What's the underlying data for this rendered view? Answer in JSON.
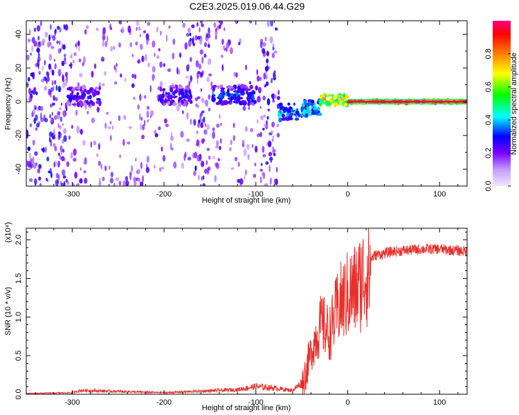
{
  "title": "C2E3.2025.019.06.44.G29",
  "chart_data": [
    {
      "type": "heatmap",
      "xlabel": "Height of straight line (km)",
      "ylabel": "Frequency (Hz)",
      "xlim": [
        -350,
        130
      ],
      "ylim": [
        -50,
        48
      ],
      "xticks": [
        -300,
        -200,
        -100,
        0,
        100
      ],
      "xtick_labels": [
        "-300",
        "-200",
        "-100",
        "0",
        "100"
      ],
      "yticks": [
        -40,
        -20,
        0,
        20,
        40
      ],
      "ytick_labels": [
        "-40",
        "-20",
        "0",
        "20",
        "40"
      ],
      "colorbar": {
        "label": "Normalized spectral amplitude",
        "range": [
          0,
          1
        ],
        "ticks": [
          0.0,
          0.2,
          0.4,
          0.6,
          0.8
        ],
        "tick_labels": [
          "0.0",
          "0.2",
          "0.4",
          "0.6",
          "0.8"
        ],
        "colormap": [
          "#f0e6ff",
          "#7a00ff",
          "#0000ff",
          "#00ffff",
          "#00ff00",
          "#ffff00",
          "#ff8000",
          "#ff0000",
          "#ff0080"
        ]
      },
      "noise_bands": [
        {
          "x": [
            -350,
            -305
          ],
          "density": 0.9
        },
        {
          "x": [
            -305,
            -200
          ],
          "density": 0.35
        },
        {
          "x": [
            -200,
            -175
          ],
          "density": 0.25
        },
        {
          "x": [
            -175,
            -150
          ],
          "density": 0.8
        },
        {
          "x": [
            -150,
            -95
          ],
          "density": 0.3
        },
        {
          "x": [
            -95,
            -75
          ],
          "density": 0.8
        },
        {
          "x": [
            -75,
            130
          ],
          "density": 0.0
        }
      ],
      "signal_segments": [
        {
          "x": [
            -305,
            -270
          ],
          "freq": 3,
          "amp": 0.3
        },
        {
          "x": [
            -205,
            -170
          ],
          "freq": 4,
          "amp": 0.3
        },
        {
          "x": [
            -148,
            -100
          ],
          "freq": 4,
          "amp": 0.35
        },
        {
          "x": [
            -75,
            -55
          ],
          "freq": -6,
          "amp": 0.45
        },
        {
          "x": [
            -55,
            -30
          ],
          "freq": -4,
          "amp": 0.45
        },
        {
          "x": [
            -30,
            0
          ],
          "freq": 1,
          "amp": 0.75
        },
        {
          "x": [
            0,
            130
          ],
          "freq": 0,
          "amp": 0.95
        }
      ]
    },
    {
      "type": "line",
      "xlabel": "Height of straight line (km)",
      "ylabel": "SNR (10 * v/v)",
      "scale_label": "(x10⁴)",
      "xlim": [
        -350,
        130
      ],
      "ylim": [
        0,
        2.15
      ],
      "xticks": [
        -300,
        -200,
        -100,
        0,
        100
      ],
      "xtick_labels": [
        "-300",
        "-200",
        "-100",
        "0",
        "100"
      ],
      "yticks": [
        0.0,
        0.5,
        1.0,
        1.5,
        2.0
      ],
      "ytick_labels": [
        "0.0",
        "0.5",
        "1.0",
        "1.5",
        "2.0"
      ],
      "series": [
        {
          "color": "#e8302a",
          "envelope": [
            {
              "x": -350,
              "y": 0.01
            },
            {
              "x": -300,
              "y": 0.02
            },
            {
              "x": -290,
              "y": 0.05
            },
            {
              "x": -200,
              "y": 0.02
            },
            {
              "x": -160,
              "y": 0.04
            },
            {
              "x": -120,
              "y": 0.06
            },
            {
              "x": -100,
              "y": 0.1
            },
            {
              "x": -80,
              "y": 0.08
            },
            {
              "x": -60,
              "y": 0.05
            },
            {
              "x": -50,
              "y": 0.15
            },
            {
              "x": -42,
              "y": 0.5
            },
            {
              "x": -35,
              "y": 0.8
            },
            {
              "x": -28,
              "y": 1.0
            },
            {
              "x": -20,
              "y": 0.85
            },
            {
              "x": -10,
              "y": 1.25
            },
            {
              "x": 0,
              "y": 1.4
            },
            {
              "x": 10,
              "y": 1.5
            },
            {
              "x": 20,
              "y": 1.72
            },
            {
              "x": 30,
              "y": 1.8
            },
            {
              "x": 50,
              "y": 1.85
            },
            {
              "x": 80,
              "y": 1.88
            },
            {
              "x": 100,
              "y": 1.88
            },
            {
              "x": 130,
              "y": 1.85
            }
          ]
        }
      ]
    }
  ]
}
